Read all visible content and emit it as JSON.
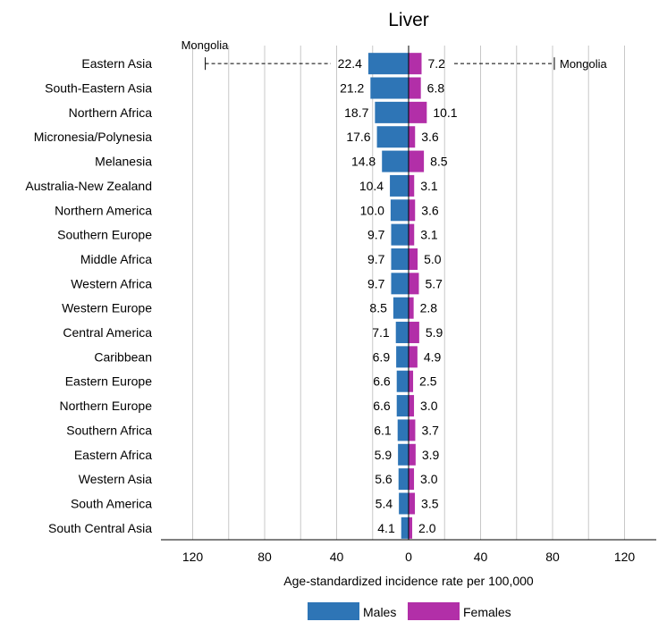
{
  "chart_data": {
    "type": "bar",
    "title": "Liver",
    "xlabel": "Age-standardized incidence rate per 100,000",
    "xlim": [
      -140,
      140
    ],
    "xticks": [
      -120,
      -80,
      -40,
      0,
      40,
      80,
      120
    ],
    "xtick_labels": [
      "120",
      "80",
      "40",
      "0",
      "40",
      "80",
      "120"
    ],
    "grid": true,
    "legend_position": "bottom",
    "categories": [
      "Eastern Asia",
      "South-Eastern Asia",
      "Northern Africa",
      "Micronesia/Polynesia",
      "Melanesia",
      "Australia-New Zealand",
      "Northern America",
      "Southern Europe",
      "Middle Africa",
      "Western Africa",
      "Western Europe",
      "Central America",
      "Caribbean",
      "Eastern Europe",
      "Northern Europe",
      "Southern Africa",
      "Eastern Africa",
      "Western Asia",
      "South America",
      "South Central Asia"
    ],
    "series": [
      {
        "name": "Males",
        "color": "#2e75b6",
        "side": "left",
        "values": [
          22.4,
          21.2,
          18.7,
          17.6,
          14.8,
          10.4,
          10.0,
          9.7,
          9.7,
          9.7,
          8.5,
          7.1,
          6.9,
          6.6,
          6.6,
          6.1,
          5.9,
          5.6,
          5.4,
          4.1
        ],
        "value_labels": [
          "22.4",
          "21.2",
          "18.7",
          "17.6",
          "14.8",
          "10.4",
          "10.0",
          "9.7",
          "9.7",
          "9.7",
          "8.5",
          "7.1",
          "6.9",
          "6.6",
          "6.6",
          "6.1",
          "5.9",
          "5.6",
          "5.4",
          "4.1"
        ]
      },
      {
        "name": "Females",
        "color": "#b22fa8",
        "side": "right",
        "values": [
          7.2,
          6.8,
          10.1,
          3.6,
          8.5,
          3.1,
          3.6,
          3.1,
          5.0,
          5.7,
          2.8,
          5.9,
          4.9,
          2.5,
          3.0,
          3.7,
          3.9,
          3.0,
          3.5,
          2.0
        ],
        "value_labels": [
          "7.2",
          "6.8",
          "10.1",
          "3.6",
          "8.5",
          "3.1",
          "3.6",
          "3.1",
          "5.0",
          "5.7",
          "2.8",
          "5.9",
          "4.9",
          "2.5",
          "3.0",
          "3.7",
          "3.9",
          "3.0",
          "3.5",
          "2.0"
        ]
      }
    ],
    "annotations": [
      {
        "text": "Mongolia",
        "series": "Males",
        "category": "Eastern Asia",
        "value": 113
      },
      {
        "text": "Mongolia",
        "series": "Females",
        "category": "Eastern Asia",
        "value": 81
      }
    ]
  }
}
